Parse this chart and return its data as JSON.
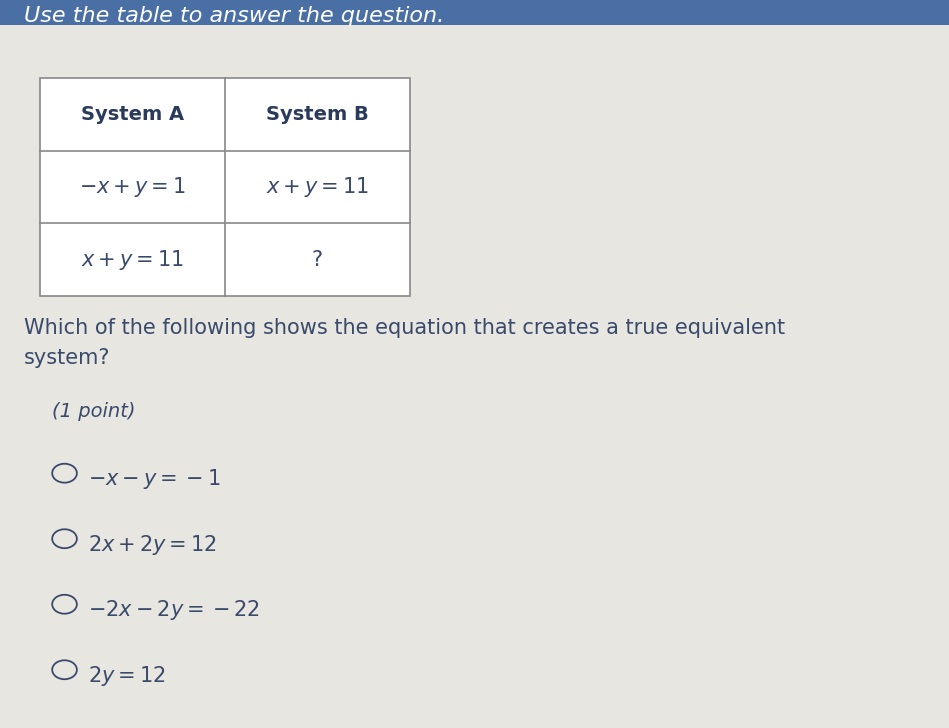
{
  "background_color": "#e8e6e1",
  "title_text": "Use the table to answer the question.",
  "title_fontsize": 16,
  "table_header": [
    "System A",
    "System B"
  ],
  "table_row1_a": "$-x+y=1$",
  "table_row1_b": "$x+y=11$",
  "table_row2_a": "$x+y=11$",
  "table_row2_b": "?",
  "question_text": "Which of the following shows the equation that creates a true equivalent\nsystem?",
  "question_fontsize": 15,
  "points_text": "(1 point)",
  "points_fontsize": 14,
  "options": [
    "$-x-y=-1$",
    "$2x+2y=12$",
    "$-2x-2y=-22$",
    "$2y=12$"
  ],
  "option_fontsize": 15,
  "text_color": "#3a4a6b",
  "header_color": "#2a3a5b",
  "table_border_color": "#888888",
  "last_option_partial": true
}
